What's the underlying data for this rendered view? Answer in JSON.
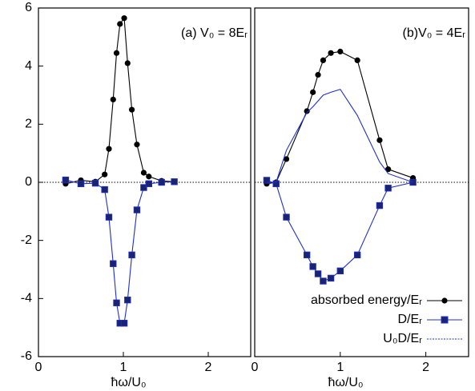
{
  "chart_data": [
    {
      "type": "line",
      "title": "(a) V₀ = 8Eᵣ",
      "xlabel": "ħω/U₀",
      "x": [
        0.32,
        0.5,
        0.67,
        0.78,
        0.83,
        0.88,
        0.92,
        0.96,
        1.01,
        1.05,
        1.1,
        1.16,
        1.24,
        1.3,
        1.45,
        1.6
      ],
      "series": [
        {
          "name": "absorbed energy/Eᵣ",
          "color": "#000000",
          "marker": "circle",
          "values": [
            -0.05,
            0.07,
            0.02,
            0.27,
            1.15,
            2.85,
            4.45,
            5.45,
            5.65,
            4.1,
            2.5,
            1.3,
            0.33,
            0.2,
            0.05,
            0.02
          ]
        },
        {
          "name": "D/Eᵣ",
          "color": "#1f2fd0",
          "marker": "square",
          "values": [
            0.08,
            -0.05,
            -0.03,
            -0.25,
            -1.2,
            -2.8,
            -4.15,
            -4.85,
            -4.85,
            -4.05,
            -2.5,
            -0.95,
            -0.18,
            -0.05,
            0.0,
            0.02
          ]
        }
      ],
      "xlim": [
        0,
        2.5
      ],
      "ylim": [
        -6,
        6
      ],
      "xticks": [
        0,
        1,
        2
      ],
      "yticks": [
        -6,
        -4,
        -2,
        0,
        2,
        4,
        6
      ]
    },
    {
      "type": "line",
      "title": "(b)V₀ = 4Eᵣ",
      "xlabel": "ħω/U₀",
      "x": [
        0.14,
        0.25,
        0.37,
        0.61,
        0.68,
        0.74,
        0.8,
        0.89,
        1.0,
        1.2,
        1.46,
        1.56,
        1.85
      ],
      "series": [
        {
          "name": "absorbed energy/Eᵣ",
          "color": "#000000",
          "marker": "circle",
          "values": [
            -0.05,
            0.0,
            0.8,
            2.45,
            3.1,
            3.7,
            4.2,
            4.45,
            4.5,
            4.2,
            1.45,
            0.45,
            0.15
          ]
        },
        {
          "name": "D/Eᵣ",
          "color": "#1f2fd0",
          "marker": "square",
          "values": [
            0.07,
            -0.05,
            -1.2,
            -2.5,
            -2.9,
            -3.15,
            -3.4,
            -3.3,
            -3.05,
            -2.5,
            -0.8,
            -0.2,
            0.0
          ]
        },
        {
          "name": "U₀D/Eᵣ",
          "color": "#1f2fd0",
          "marker": "none",
          "values": [
            0.0,
            0.0,
            1.1,
            2.4,
            2.6,
            2.8,
            3.0,
            3.1,
            3.2,
            2.3,
            0.7,
            0.3,
            0.0
          ]
        }
      ],
      "xlim": [
        0,
        2.5
      ],
      "ylim": [
        -6,
        6
      ],
      "xticks": [
        0,
        1,
        2
      ],
      "legend": "lower right"
    }
  ]
}
